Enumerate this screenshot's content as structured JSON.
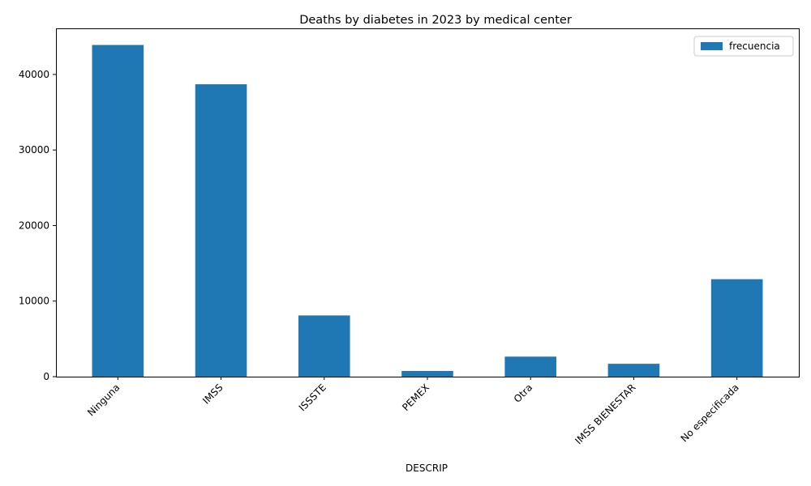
{
  "chart_data": {
    "type": "bar",
    "title": "Deaths by diabetes in 2023 by medical center",
    "xlabel": "DESCRIP",
    "ylabel": "",
    "categories": [
      "Ninguna",
      "IMSS",
      "ISSSTE",
      "PEMEX",
      "Otra",
      "IMSS BIENESTAR",
      "No especificada"
    ],
    "series": [
      {
        "name": "frecuencia",
        "values": [
          43900,
          38700,
          8100,
          750,
          2650,
          1700,
          12900
        ]
      }
    ],
    "ylim": [
      0,
      46100
    ],
    "yticks": [
      0,
      10000,
      20000,
      30000,
      40000
    ],
    "bar_color": "#1f77b4",
    "grid": false,
    "legend_position": "top-right"
  }
}
